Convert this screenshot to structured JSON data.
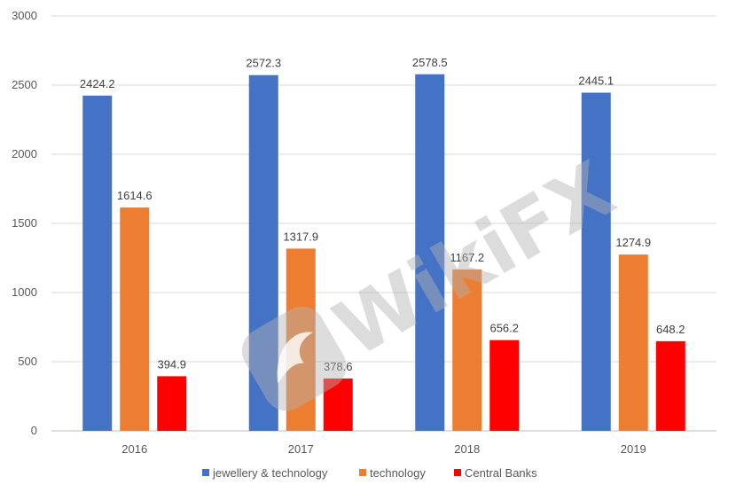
{
  "chart_data": {
    "type": "bar",
    "categories": [
      "2016",
      "2017",
      "2018",
      "2019"
    ],
    "series": [
      {
        "name": "jewellery & technology",
        "color": "#4472C4",
        "values": [
          2424.2,
          2572.3,
          2578.5,
          2445.1
        ]
      },
      {
        "name": "technology",
        "color": "#ED7D31",
        "values": [
          1614.6,
          1317.9,
          1167.2,
          1274.9
        ]
      },
      {
        "name": "Central Banks",
        "color": "#FF0000",
        "values": [
          394.9,
          378.6,
          656.2,
          648.2
        ]
      }
    ],
    "ylim": [
      0,
      3000
    ],
    "yticks": [
      0,
      500,
      1000,
      1500,
      2000,
      2500,
      3000
    ],
    "grid": true,
    "legend_position": "bottom",
    "data_labels": true
  },
  "watermark": {
    "text": "WikiFX",
    "color": "#b3b3b3"
  }
}
